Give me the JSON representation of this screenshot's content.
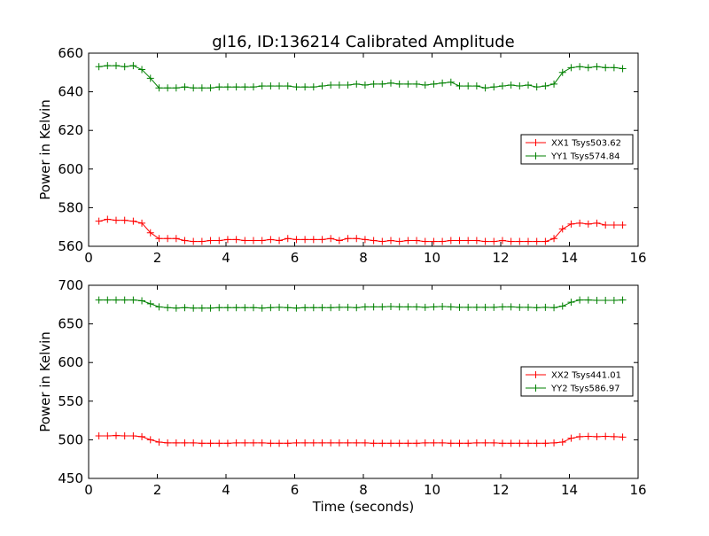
{
  "chart_data": [
    {
      "type": "line",
      "title": "gl16, ID:136214 Calibrated Amplitude",
      "xlabel": "",
      "ylabel": "Power in Kelvin",
      "xlim": [
        0,
        16
      ],
      "ylim": [
        560,
        660
      ],
      "xticks": [
        0,
        2,
        4,
        6,
        8,
        10,
        12,
        14,
        16
      ],
      "yticks": [
        560,
        580,
        600,
        620,
        640,
        660
      ],
      "grid": false,
      "legend_position": "center-right",
      "x": [
        0.3,
        0.55,
        0.8,
        1.05,
        1.3,
        1.55,
        1.8,
        2.05,
        2.3,
        2.55,
        2.8,
        3.05,
        3.3,
        3.55,
        3.8,
        4.05,
        4.3,
        4.55,
        4.8,
        5.05,
        5.3,
        5.55,
        5.8,
        6.05,
        6.3,
        6.55,
        6.8,
        7.05,
        7.3,
        7.55,
        7.8,
        8.05,
        8.3,
        8.55,
        8.8,
        9.05,
        9.3,
        9.55,
        9.8,
        10.05,
        10.3,
        10.55,
        10.8,
        11.05,
        11.3,
        11.55,
        11.8,
        12.05,
        12.3,
        12.55,
        12.8,
        13.05,
        13.3,
        13.55,
        13.8,
        14.05,
        14.3,
        14.55,
        14.8,
        15.05,
        15.3,
        15.55
      ],
      "series": [
        {
          "name": "XX1 Tsys503.62",
          "color": "#ff0000",
          "values": [
            573,
            574,
            573.5,
            573.5,
            573,
            572,
            567,
            564,
            564,
            564,
            563,
            562.5,
            562.5,
            563,
            563,
            563.5,
            563.5,
            563,
            563,
            563,
            563.5,
            563,
            564,
            563.5,
            563.5,
            563.5,
            563.5,
            564,
            563,
            564,
            564,
            563.5,
            563,
            562.5,
            563,
            562.5,
            563,
            563,
            562.5,
            562.5,
            562.5,
            563,
            563,
            563,
            563,
            562.5,
            562.5,
            563,
            562.5,
            562.5,
            562.5,
            562.5,
            562.5,
            564,
            569,
            571.5,
            572,
            571.5,
            572,
            571,
            571,
            571
          ]
        },
        {
          "name": "YY1 Tsys574.84",
          "color": "#008000",
          "values": [
            653,
            653.5,
            653.5,
            653,
            653.5,
            651.5,
            647,
            642,
            642,
            642,
            642.5,
            642,
            642,
            642,
            642.5,
            642.5,
            642.5,
            642.5,
            642.5,
            643,
            643,
            643,
            643,
            642.5,
            642.5,
            642.5,
            643,
            643.5,
            643.5,
            643.5,
            644,
            643.5,
            644,
            644,
            644.5,
            644,
            644,
            644,
            643.5,
            644,
            644.5,
            645,
            643,
            643,
            643,
            642,
            642.5,
            643,
            643.5,
            643,
            643.5,
            642.5,
            643,
            644,
            650,
            652.5,
            653,
            652.5,
            653,
            652.5,
            652.5,
            652
          ]
        }
      ]
    },
    {
      "type": "line",
      "title": "",
      "xlabel": "Time (seconds)",
      "ylabel": "Power in Kelvin",
      "xlim": [
        0,
        16
      ],
      "ylim": [
        450,
        700
      ],
      "xticks": [
        0,
        2,
        4,
        6,
        8,
        10,
        12,
        14,
        16
      ],
      "yticks": [
        450,
        500,
        550,
        600,
        650,
        700
      ],
      "grid": false,
      "legend_position": "center-right",
      "x": [
        0.3,
        0.55,
        0.8,
        1.05,
        1.3,
        1.55,
        1.8,
        2.05,
        2.3,
        2.55,
        2.8,
        3.05,
        3.3,
        3.55,
        3.8,
        4.05,
        4.3,
        4.55,
        4.8,
        5.05,
        5.3,
        5.55,
        5.8,
        6.05,
        6.3,
        6.55,
        6.8,
        7.05,
        7.3,
        7.55,
        7.8,
        8.05,
        8.3,
        8.55,
        8.8,
        9.05,
        9.3,
        9.55,
        9.8,
        10.05,
        10.3,
        10.55,
        10.8,
        11.05,
        11.3,
        11.55,
        11.8,
        12.05,
        12.3,
        12.55,
        12.8,
        13.05,
        13.3,
        13.55,
        13.8,
        14.05,
        14.3,
        14.55,
        14.8,
        15.05,
        15.3,
        15.55
      ],
      "series": [
        {
          "name": "XX2 Tsys441.01",
          "color": "#ff0000",
          "values": [
            505,
            505,
            505.5,
            505,
            505,
            504,
            500,
            497,
            496,
            496,
            496,
            496,
            495.5,
            495.5,
            495.5,
            495.5,
            496,
            496,
            496,
            496,
            495.5,
            495.5,
            495.5,
            496,
            496,
            496,
            496,
            496,
            496,
            496,
            496,
            496,
            495.5,
            495.5,
            495.5,
            495.5,
            495.5,
            495.5,
            496,
            496,
            496,
            495.5,
            495.5,
            495.5,
            496,
            496,
            496,
            495.5,
            495.5,
            495.5,
            495.5,
            495.5,
            495.5,
            496,
            497,
            502,
            504,
            504.5,
            504,
            504.5,
            504,
            503.5
          ]
        },
        {
          "name": "YY2 Tsys586.97",
          "color": "#008000",
          "values": [
            681,
            681,
            681,
            681,
            681,
            680,
            676,
            672,
            671,
            670.5,
            671,
            670.5,
            670.5,
            670.5,
            671,
            671,
            671,
            671,
            671,
            670.5,
            671,
            671.5,
            671,
            670.5,
            671,
            671,
            671,
            671,
            671.5,
            671.5,
            671,
            672,
            672,
            672,
            672.5,
            672,
            672,
            672,
            671.5,
            672,
            672.5,
            672,
            671.5,
            671.5,
            671.5,
            671.5,
            671.5,
            672,
            672,
            671.5,
            671.5,
            671,
            671.5,
            671,
            673,
            678,
            681,
            681,
            680.5,
            680.5,
            680.5,
            681
          ]
        }
      ]
    }
  ]
}
